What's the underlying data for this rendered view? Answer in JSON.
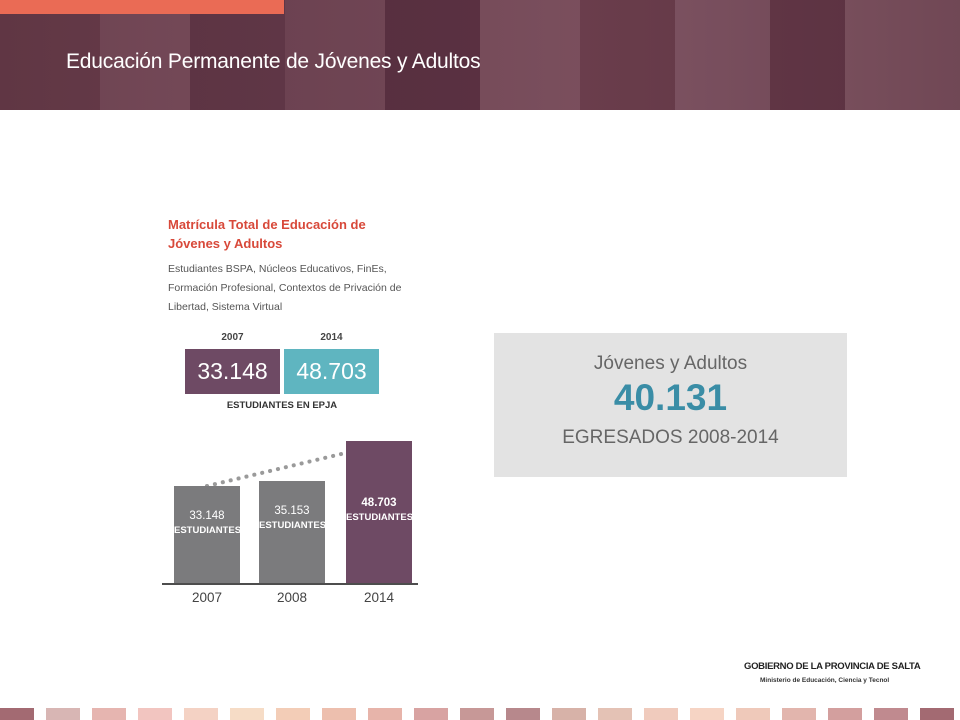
{
  "header": {
    "title": "Educación Permanente de Jóvenes y Adultos",
    "accent_color": "#ea6b55"
  },
  "matricula": {
    "title": "Matrícula Total de Educación de Jóvenes y Adultos",
    "subtitle": "Estudiantes BSPA, Núcleos Educativos, FinEs, Formación Profesional, Contextos de Privación de Libertad, Sistema Virtual",
    "year_a": "2007",
    "year_b": "2014",
    "value_a": "33.148",
    "value_b": "48.703",
    "caption": "ESTUDIANTES EN EPJA",
    "color_a": "#6e4a64",
    "color_b": "#5fb5c0"
  },
  "chart_data": {
    "type": "bar",
    "categories": [
      "2007",
      "2008",
      "2014"
    ],
    "values": [
      33148,
      35153,
      48703
    ],
    "value_labels": [
      "33.148",
      "35.153",
      "48.703"
    ],
    "unit_label": "ESTUDIANTES",
    "colors": [
      "#7b7b7d",
      "#7b7b7d",
      "#6e4a64"
    ],
    "trend_line": "dotted",
    "ylim": [
      0,
      48703
    ]
  },
  "egresados": {
    "line1": "Jóvenes y Adultos",
    "value": "40.131",
    "line3": "EGRESADOS 2008-2014",
    "value_color": "#3a8da6"
  },
  "footer": {
    "gov_name": "GOBIERNO DE LA PROVINCIA DE SALTA",
    "ministry": "Ministerio de Educación, Ciencia y Tecnol"
  }
}
